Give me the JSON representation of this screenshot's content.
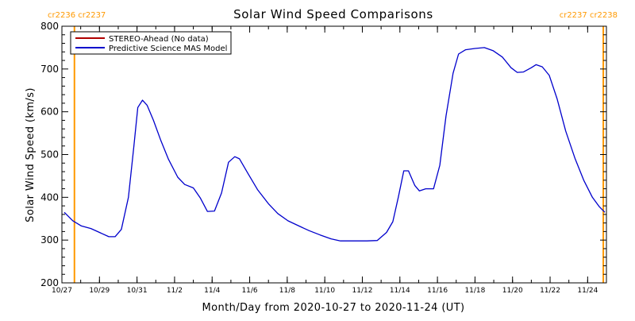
{
  "chart_data": {
    "type": "line",
    "title": "Solar Wind Speed Comparisons",
    "xlabel": "Month/Day from 2020-10-27 to 2020-11-24 (UT)",
    "ylabel": "Solar Wind Speed (km/s)",
    "xlim": [
      "2020-10-27",
      "2020-11-25"
    ],
    "ylim": [
      200,
      800
    ],
    "yticks": [
      200,
      300,
      400,
      500,
      600,
      700,
      800
    ],
    "xticks": [
      {
        "date": "2020-10-27",
        "label": "10/27"
      },
      {
        "date": "2020-10-29",
        "label": "10/29"
      },
      {
        "date": "2020-10-31",
        "label": "10/31"
      },
      {
        "date": "2020-11-02",
        "label": "11/2"
      },
      {
        "date": "2020-11-04",
        "label": "11/4"
      },
      {
        "date": "2020-11-06",
        "label": "11/6"
      },
      {
        "date": "2020-11-08",
        "label": "11/8"
      },
      {
        "date": "2020-11-10",
        "label": "11/10"
      },
      {
        "date": "2020-11-12",
        "label": "11/12"
      },
      {
        "date": "2020-11-14",
        "label": "11/14"
      },
      {
        "date": "2020-11-16",
        "label": "11/16"
      },
      {
        "date": "2020-11-18",
        "label": "11/18"
      },
      {
        "date": "2020-11-20",
        "label": "11/20"
      },
      {
        "date": "2020-11-22",
        "label": "11/22"
      },
      {
        "date": "2020-11-24",
        "label": "11/24"
      }
    ],
    "legend_placement": "top-left",
    "series": [
      {
        "name": "STEREO-Ahead (No data)",
        "color": "#b00000",
        "points": []
      },
      {
        "name": "Predictive Science MAS Model",
        "color": "#0000cc",
        "points": [
          [
            "2020-10-27 03:00",
            365
          ],
          [
            "2020-10-27 14:00",
            345
          ],
          [
            "2020-10-28 01:00",
            333
          ],
          [
            "2020-10-28 13:00",
            327
          ],
          [
            "2020-10-29 00:00",
            318
          ],
          [
            "2020-10-29 12:00",
            308
          ],
          [
            "2020-10-29 20:00",
            308
          ],
          [
            "2020-10-30 04:00",
            325
          ],
          [
            "2020-10-30 13:00",
            400
          ],
          [
            "2020-10-30 20:00",
            520
          ],
          [
            "2020-10-31 01:00",
            610
          ],
          [
            "2020-10-31 07:00",
            627
          ],
          [
            "2020-10-31 13:00",
            615
          ],
          [
            "2020-10-31 21:00",
            580
          ],
          [
            "2020-11-01 06:00",
            535
          ],
          [
            "2020-11-01 16:00",
            490
          ],
          [
            "2020-11-02 04:00",
            447
          ],
          [
            "2020-11-02 13:00",
            430
          ],
          [
            "2020-11-03 00:00",
            422
          ],
          [
            "2020-11-03 09:00",
            398
          ],
          [
            "2020-11-03 18:00",
            367
          ],
          [
            "2020-11-04 03:00",
            368
          ],
          [
            "2020-11-04 12:00",
            410
          ],
          [
            "2020-11-04 21:00",
            482
          ],
          [
            "2020-11-05 05:00",
            495
          ],
          [
            "2020-11-05 11:00",
            490
          ],
          [
            "2020-11-05 22:00",
            455
          ],
          [
            "2020-11-06 10:00",
            418
          ],
          [
            "2020-11-07 00:00",
            385
          ],
          [
            "2020-11-07 12:00",
            362
          ],
          [
            "2020-11-08 01:00",
            345
          ],
          [
            "2020-11-08 15:00",
            333
          ],
          [
            "2020-11-09 04:00",
            322
          ],
          [
            "2020-11-09 18:00",
            312
          ],
          [
            "2020-11-10 08:00",
            303
          ],
          [
            "2020-11-10 20:00",
            298
          ],
          [
            "2020-11-11 12:00",
            298
          ],
          [
            "2020-11-12 06:00",
            298
          ],
          [
            "2020-11-12 19:00",
            299
          ],
          [
            "2020-11-13 07:00",
            318
          ],
          [
            "2020-11-13 15:00",
            343
          ],
          [
            "2020-11-13 22:00",
            400
          ],
          [
            "2020-11-14 05:00",
            462
          ],
          [
            "2020-11-14 11:00",
            462
          ],
          [
            "2020-11-14 19:00",
            428
          ],
          [
            "2020-11-15 01:00",
            415
          ],
          [
            "2020-11-15 09:00",
            420
          ],
          [
            "2020-11-15 19:00",
            420
          ],
          [
            "2020-11-16 03:00",
            475
          ],
          [
            "2020-11-16 11:00",
            590
          ],
          [
            "2020-11-16 20:00",
            690
          ],
          [
            "2020-11-17 03:00",
            735
          ],
          [
            "2020-11-17 12:00",
            745
          ],
          [
            "2020-11-18 00:00",
            748
          ],
          [
            "2020-11-18 12:00",
            750
          ],
          [
            "2020-11-18 23:00",
            743
          ],
          [
            "2020-11-19 11:00",
            728
          ],
          [
            "2020-11-19 22:00",
            703
          ],
          [
            "2020-11-20 06:00",
            692
          ],
          [
            "2020-11-20 14:00",
            693
          ],
          [
            "2020-11-21 00:00",
            703
          ],
          [
            "2020-11-21 06:00",
            710
          ],
          [
            "2020-11-21 14:00",
            705
          ],
          [
            "2020-11-21 23:00",
            685
          ],
          [
            "2020-11-22 09:00",
            630
          ],
          [
            "2020-11-22 20:00",
            555
          ],
          [
            "2020-11-23 08:00",
            490
          ],
          [
            "2020-11-23 19:00",
            440
          ],
          [
            "2020-11-24 06:00",
            400
          ],
          [
            "2020-11-24 15:00",
            378
          ],
          [
            "2020-11-24 22:00",
            365
          ]
        ]
      }
    ],
    "markers": [
      {
        "date": "2020-10-27 16:00",
        "color": "#ff9900",
        "label": "cr2236 cr2237",
        "side": "left"
      },
      {
        "date": "2020-11-24 20:00",
        "color": "#ff9900",
        "label": "cr2237 cr2238",
        "side": "right"
      }
    ],
    "grid": false
  }
}
